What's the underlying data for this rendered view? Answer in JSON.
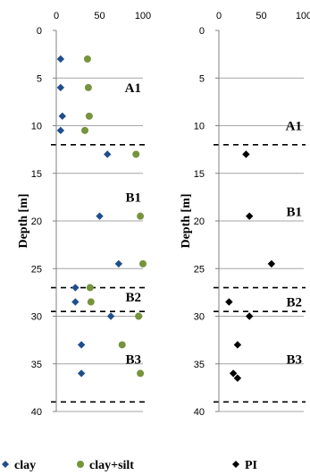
{
  "chart_data": [
    {
      "type": "scatter",
      "x_ticks": [
        "0",
        "50",
        "100"
      ],
      "y_ticks": [
        "0",
        "5",
        "10",
        "15",
        "20",
        "25",
        "30",
        "35",
        "40"
      ],
      "ylabel": "Depth [m]",
      "xlim": [
        0,
        100
      ],
      "ylim": [
        0,
        40
      ],
      "y_inverted": true,
      "x_axis_position": "top",
      "grid": "horizontal",
      "boundaries": [
        12,
        27,
        29.5,
        39
      ],
      "zones": [
        {
          "label": "A1",
          "depth": 6
        },
        {
          "label": "B1",
          "depth": 17.5
        },
        {
          "label": "B2",
          "depth": 28
        },
        {
          "label": "B3",
          "depth": 34.5
        }
      ],
      "series": [
        {
          "name": "clay",
          "color": "#1f4e8c",
          "marker": "diamond",
          "points": [
            [
              5,
              3
            ],
            [
              5,
              6
            ],
            [
              7,
              9
            ],
            [
              5,
              10.5
            ],
            [
              59,
              13
            ],
            [
              50,
              19.5
            ],
            [
              72,
              24.5
            ],
            [
              22,
              27
            ],
            [
              22,
              28.5
            ],
            [
              63,
              30
            ],
            [
              29,
              33
            ],
            [
              29,
              36
            ]
          ]
        },
        {
          "name": "clay+silt",
          "color": "#77933c",
          "marker": "circle",
          "points": [
            [
              36,
              3
            ],
            [
              37,
              6
            ],
            [
              38,
              9
            ],
            [
              33,
              10.5
            ],
            [
              92,
              13
            ],
            [
              97,
              19.5
            ],
            [
              100,
              24.5
            ],
            [
              39,
              27
            ],
            [
              40,
              28.5
            ],
            [
              95,
              30
            ],
            [
              76,
              33
            ],
            [
              97,
              36
            ]
          ]
        }
      ],
      "legend_position": "bottom"
    },
    {
      "type": "scatter",
      "x_ticks": [
        "0",
        "50",
        "100"
      ],
      "y_ticks": [
        "0",
        "5",
        "10",
        "15",
        "20",
        "25",
        "30",
        "35",
        "40"
      ],
      "ylabel": "Depth [m]",
      "xlim": [
        0,
        100
      ],
      "ylim": [
        0,
        40
      ],
      "y_inverted": true,
      "x_axis_position": "top",
      "grid": "horizontal",
      "boundaries": [
        12,
        27,
        29.5,
        39
      ],
      "zones": [
        {
          "label": "A1",
          "depth": 10
        },
        {
          "label": "B1",
          "depth": 19
        },
        {
          "label": "B2",
          "depth": 28.5
        },
        {
          "label": "B3",
          "depth": 34.5
        }
      ],
      "series": [
        {
          "name": "PI",
          "color": "#000000",
          "marker": "diamond",
          "points": [
            [
              32,
              13
            ],
            [
              36,
              19.5
            ],
            [
              62,
              24.5
            ],
            [
              12,
              28.5
            ],
            [
              36,
              30
            ],
            [
              22,
              33
            ],
            [
              17,
              36
            ],
            [
              22,
              36.5
            ]
          ]
        }
      ],
      "legend_position": "bottom"
    }
  ]
}
